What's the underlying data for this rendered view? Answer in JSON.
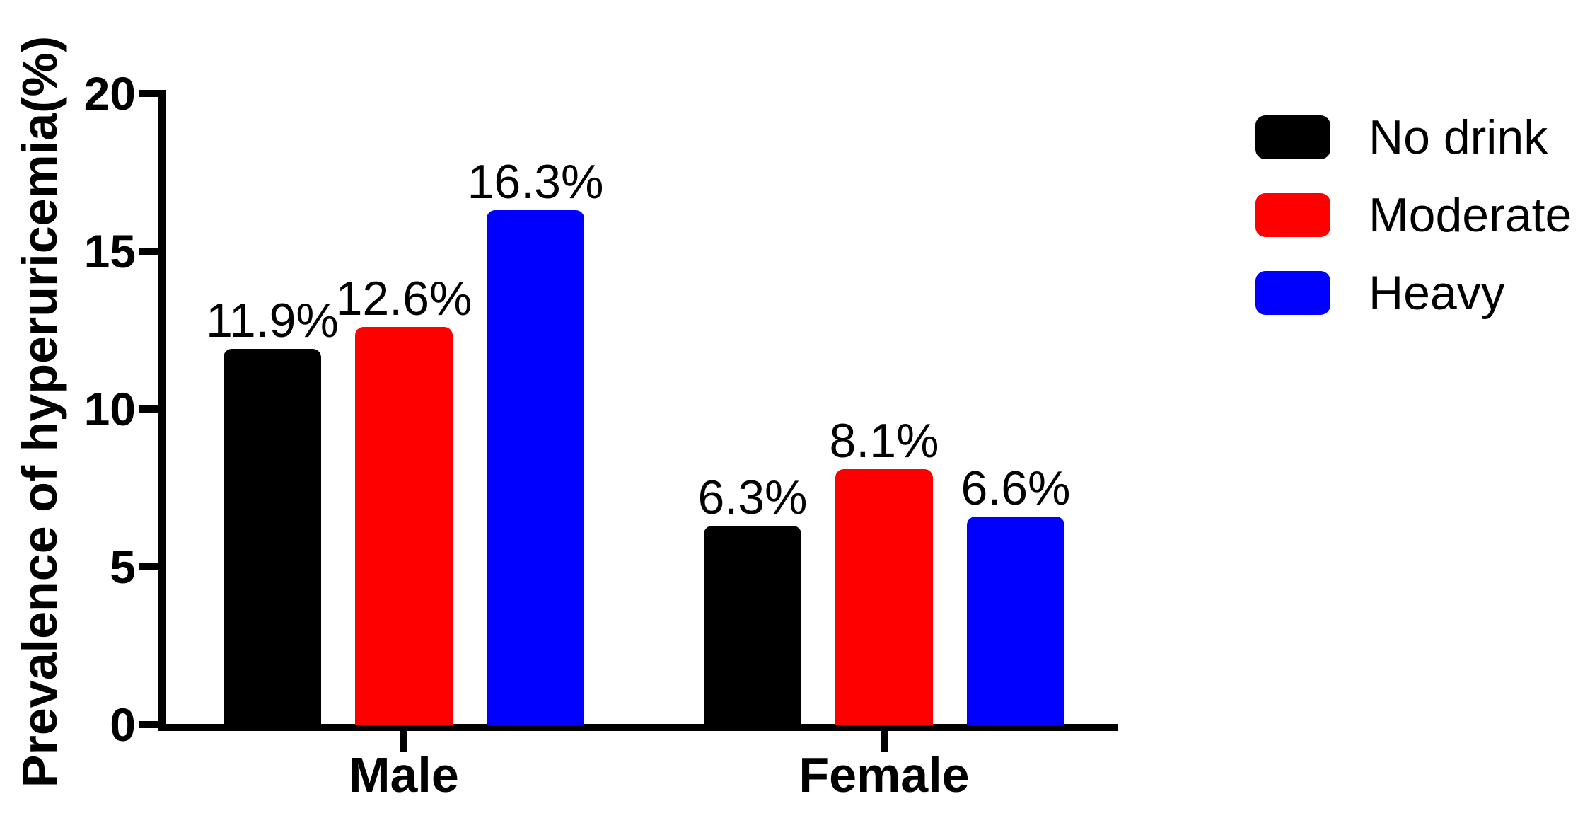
{
  "figure": {
    "background": "#FFFFFF",
    "axis_color": "#000000",
    "text_color": "#000000"
  },
  "chart_data": {
    "type": "bar",
    "title": "",
    "xlabel": "",
    "ylabel": "Prevalence of hyperuricemia(%)",
    "ylim": [
      0,
      20
    ],
    "yticks": [
      "0",
      "5",
      "10",
      "15",
      "20"
    ],
    "ytick_values": [
      0,
      5,
      10,
      15,
      20
    ],
    "grid": false,
    "legend_position": "top-right",
    "categories": [
      "Male",
      "Female"
    ],
    "series": [
      {
        "name": "No drink",
        "color": "#000000",
        "values": [
          11.9,
          6.3
        ],
        "data_labels": [
          "11.9%",
          "6.3%"
        ]
      },
      {
        "name": "Moderate",
        "color": "#FF0000",
        "values": [
          12.6,
          8.1
        ],
        "data_labels": [
          "12.6%",
          "8.1%"
        ]
      },
      {
        "name": "Heavy",
        "color": "#0000FF",
        "values": [
          16.3,
          6.6
        ],
        "data_labels": [
          "16.3%",
          "6.6%"
        ]
      }
    ]
  }
}
